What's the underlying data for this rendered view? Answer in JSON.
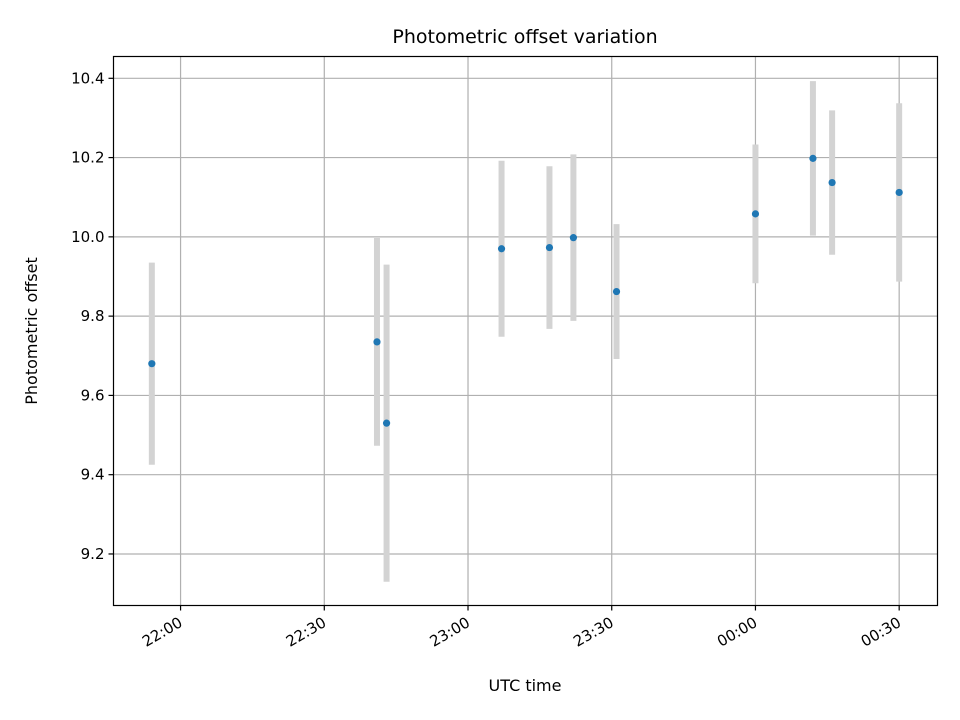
{
  "chart_data": {
    "type": "scatter",
    "title": "Photometric offset variation",
    "xlabel": "UTC time",
    "ylabel": "Photometric offset",
    "xlim": [
      "21:46",
      "00:38"
    ],
    "ylim": [
      9.07,
      10.455
    ],
    "grid": true,
    "x_ticks": [
      "22:00",
      "22:30",
      "23:00",
      "23:30",
      "00:00",
      "00:30"
    ],
    "y_ticks": [
      9.2,
      9.4,
      9.6,
      9.8,
      10.0,
      10.2,
      10.4
    ],
    "y_tick_labels": [
      "9.2",
      "9.4",
      "9.6",
      "9.8",
      "10.0",
      "10.2",
      "10.4"
    ],
    "series": [
      {
        "points": [
          {
            "x": "21:54",
            "y": 9.68,
            "err": 0.255
          },
          {
            "x": "22:41",
            "y": 9.735,
            "err": 0.262
          },
          {
            "x": "22:43",
            "y": 9.53,
            "err": 0.4
          },
          {
            "x": "23:07",
            "y": 9.97,
            "err": 0.222
          },
          {
            "x": "23:17",
            "y": 9.973,
            "err": 0.205
          },
          {
            "x": "23:22",
            "y": 9.998,
            "err": 0.21
          },
          {
            "x": "23:31",
            "y": 9.862,
            "err": 0.17
          },
          {
            "x": "00:00",
            "y": 10.058,
            "err": 0.175
          },
          {
            "x": "00:12",
            "y": 10.198,
            "err": 0.195
          },
          {
            "x": "00:16",
            "y": 10.137,
            "err": 0.182
          },
          {
            "x": "00:30",
            "y": 10.112,
            "err": 0.225
          }
        ]
      }
    ],
    "colors": {
      "marker": "#1f77b4",
      "errorbar": "#d3d3d3",
      "grid": "#b0b0b0",
      "axes": "#000000"
    }
  }
}
